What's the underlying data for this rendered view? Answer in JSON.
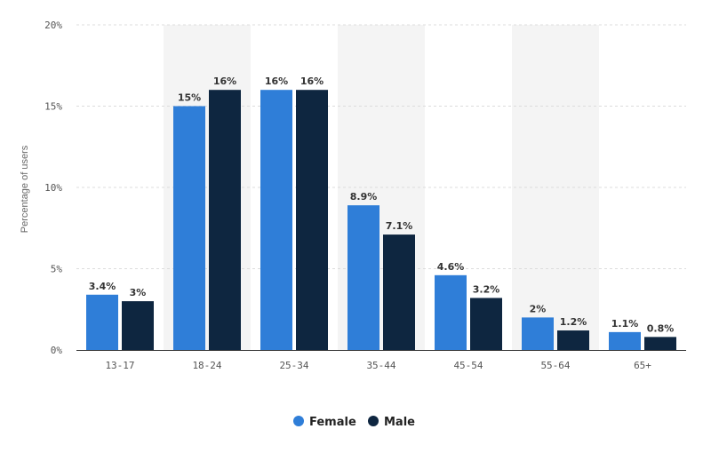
{
  "chart_data": {
    "type": "bar",
    "title": "",
    "xlabel": "",
    "ylabel": "Percentage of users",
    "categories": [
      "13-17",
      "18-24",
      "25-34",
      "35-44",
      "45-54",
      "55-64",
      "65+"
    ],
    "series": [
      {
        "name": "Female",
        "color": "#2f7ed8",
        "values": [
          3.4,
          15,
          16,
          8.9,
          4.6,
          2,
          1.1
        ],
        "labels": [
          "3.4%",
          "15%",
          "16%",
          "8.9%",
          "4.6%",
          "2%",
          "1.1%"
        ]
      },
      {
        "name": "Male",
        "color": "#0e2640",
        "values": [
          3,
          16,
          16,
          7.1,
          3.2,
          1.2,
          0.8
        ],
        "labels": [
          "3%",
          "16%",
          "16%",
          "7.1%",
          "3.2%",
          "1.2%",
          "0.8%"
        ]
      }
    ],
    "ylim": [
      0,
      20
    ],
    "yticks": [
      0,
      5,
      10,
      15,
      20
    ],
    "ytick_labels": [
      "0%",
      "5%",
      "10%",
      "15%",
      "20%"
    ],
    "grid": true,
    "legend": "bottom-center"
  }
}
